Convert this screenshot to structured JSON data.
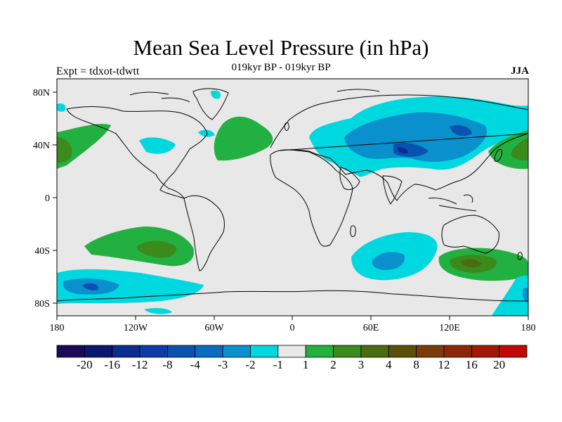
{
  "title": "Mean Sea Level Pressure (in hPa)",
  "subtitle": "019kyr BP - 019kyr BP",
  "left_label": "Expt = tdxot-tdwtt",
  "season": "JJA",
  "lat_ticks": [
    "80N",
    "40N",
    "0",
    "40S",
    "80S"
  ],
  "lon_ticks": [
    "180",
    "120W",
    "60W",
    "0",
    "60E",
    "120E",
    "180"
  ],
  "colorbar": {
    "colors": [
      "#1a0a5a",
      "#0a1670",
      "#0c2c90",
      "#0c3ca8",
      "#0a52b0",
      "#0a6cc0",
      "#0a90cc",
      "#00d8e0",
      "#e8e8e8",
      "#22b040",
      "#3a8a1c",
      "#4a6c10",
      "#5c5008",
      "#7a3c08",
      "#8c2808",
      "#a01806",
      "#c00808"
    ],
    "labels": [
      "-20",
      "-16",
      "-12",
      "-8",
      "-4",
      "-3",
      "-2",
      "-1",
      "1",
      "2",
      "3",
      "4",
      "8",
      "12",
      "16",
      "20"
    ]
  },
  "colors": {
    "background": "#e8e8e8",
    "coast": "#000000"
  }
}
